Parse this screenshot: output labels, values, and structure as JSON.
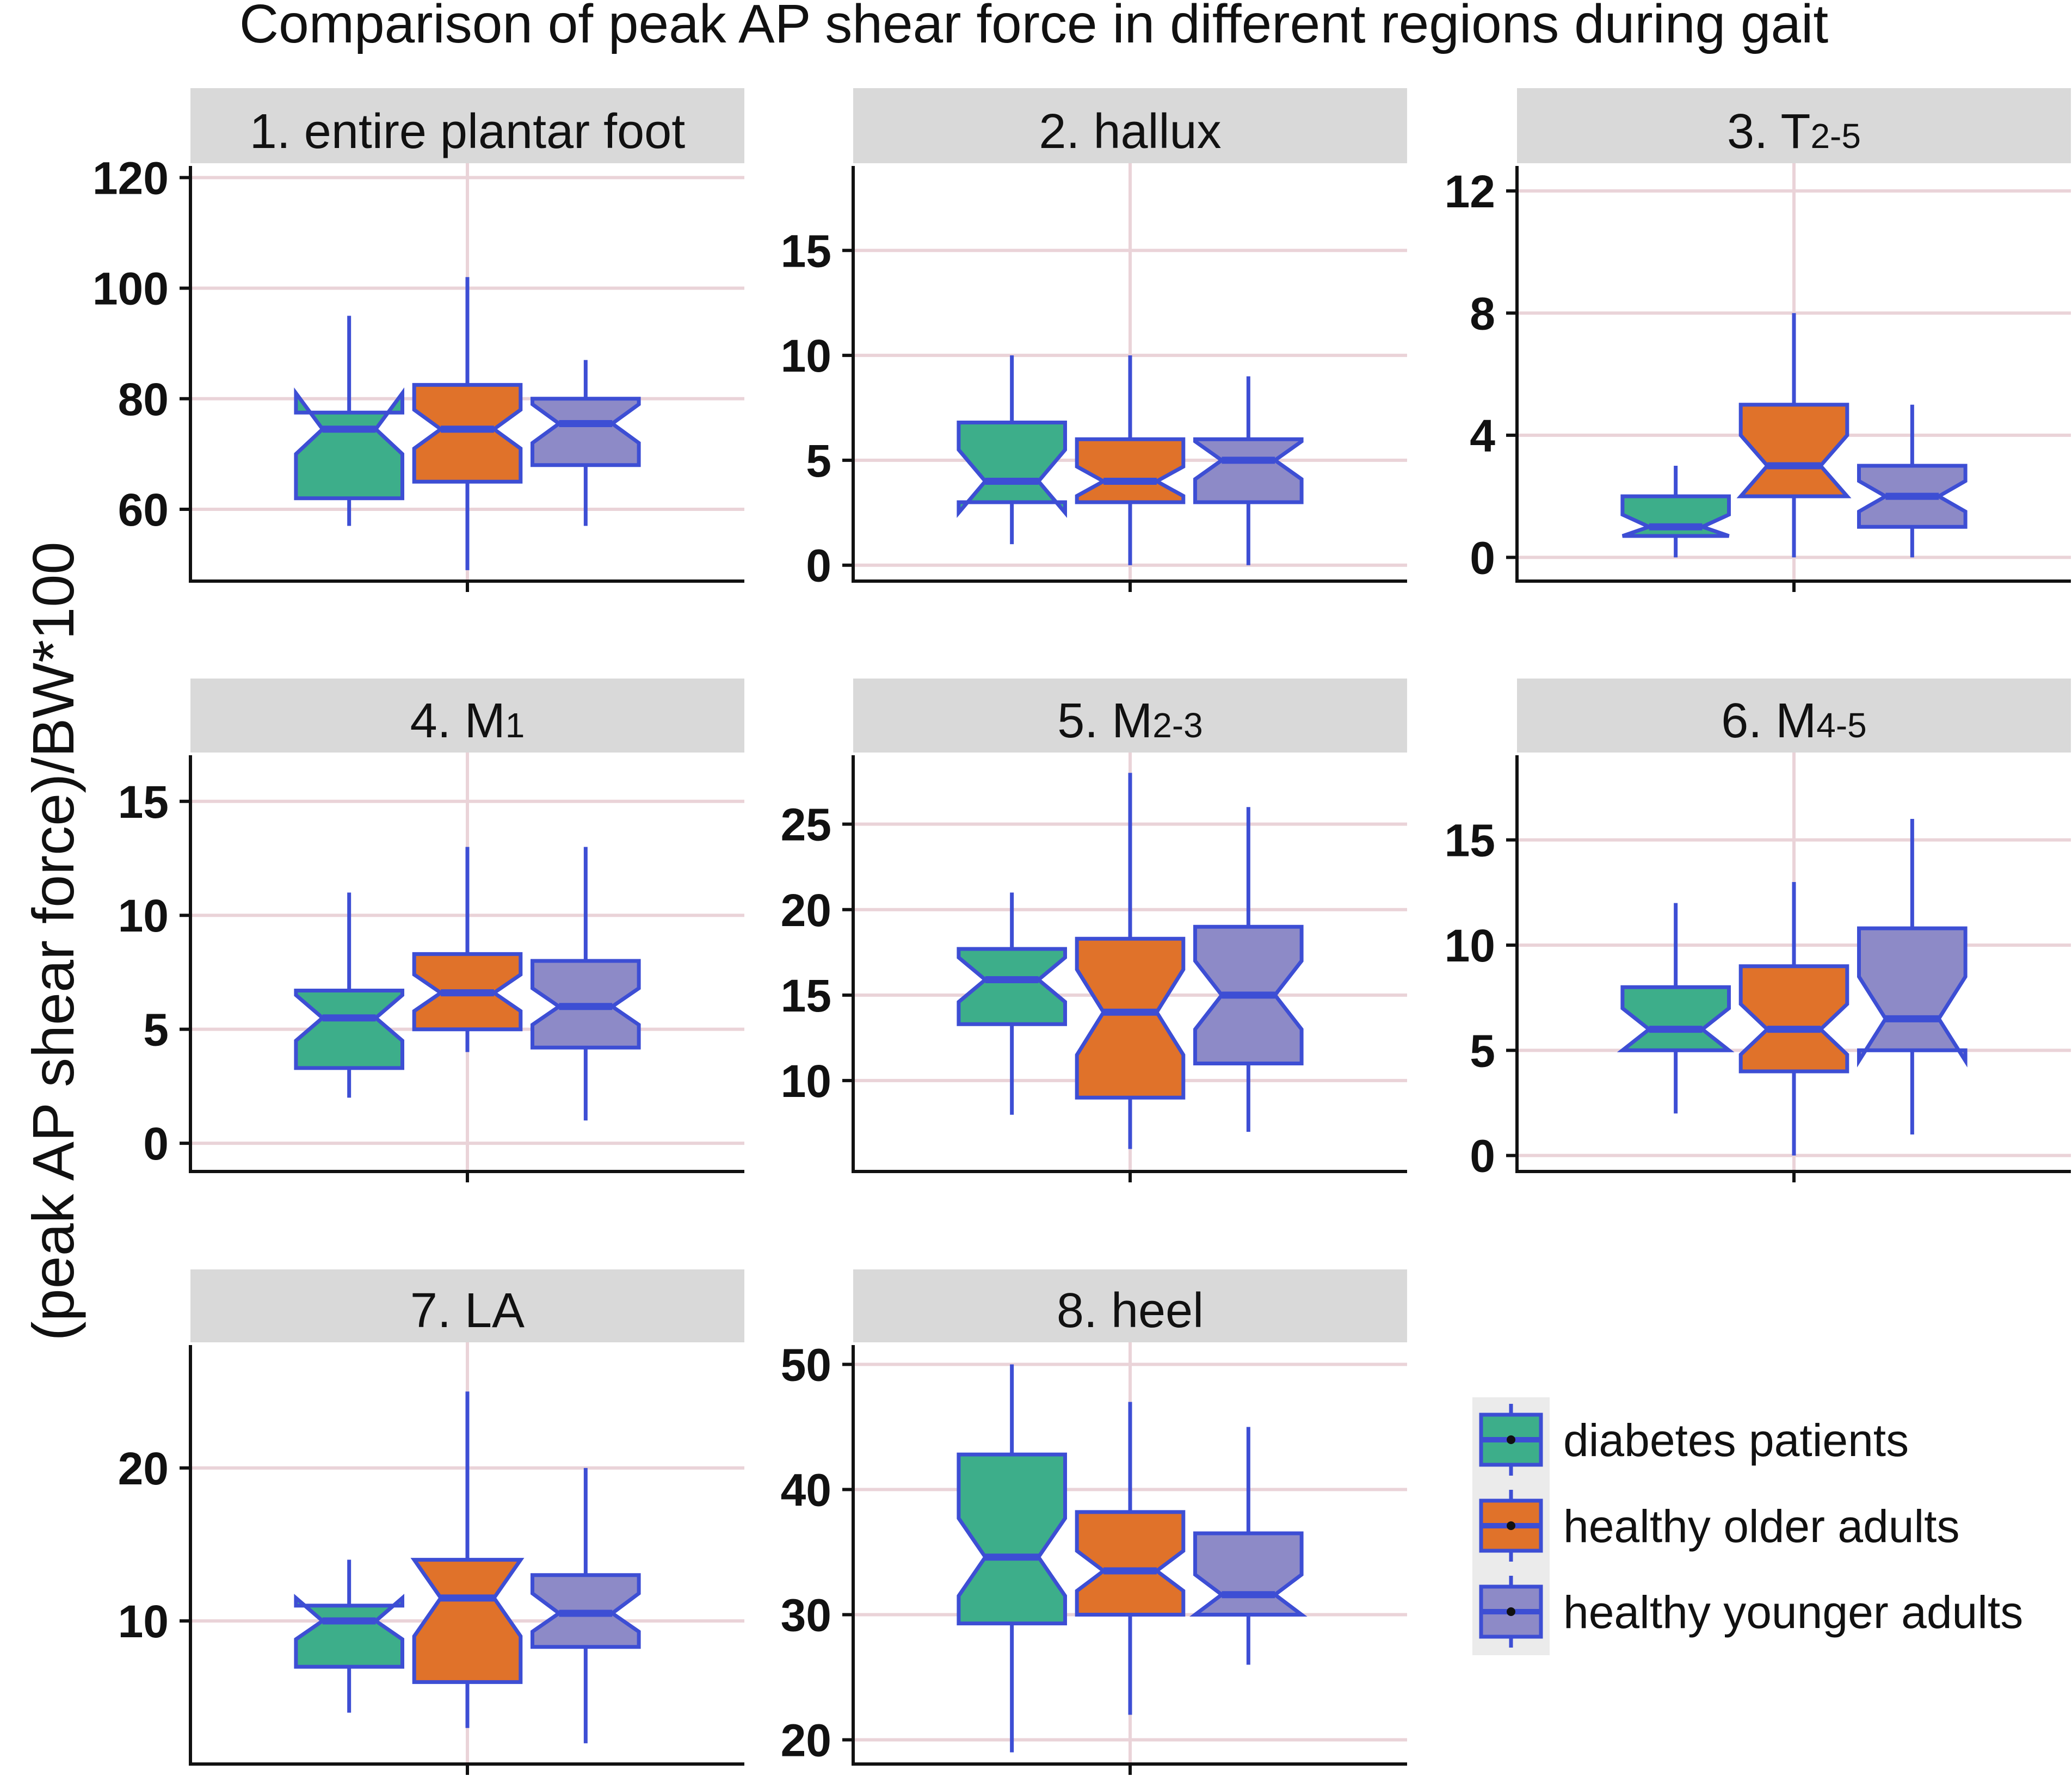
{
  "chart_data": {
    "type": "boxplot",
    "title": "Comparison of peak AP shear force in different regions during gait",
    "ylabel": "(peak AP shear force)/BW*100",
    "series_colors": {
      "fill": [
        "#3DAE8A",
        "#E0722A",
        "#8D8AC7"
      ],
      "stroke": "#3D4ED4",
      "strip": "#D9D9D9",
      "grid": "#EAD3D8",
      "legend_bg": "#EBEBEB"
    },
    "groups": [
      "diabetes patients",
      "healthy older adults",
      "healthy younger adults"
    ],
    "panels": [
      {
        "id": "1",
        "title_main": "1. entire plantar foot",
        "title_sub": "",
        "ylim": [
          48,
          122
        ],
        "ticks": [
          60,
          80,
          100,
          120
        ],
        "boxes": [
          {
            "group": "diabetes patients",
            "whisker_low": 57,
            "q1": 62,
            "median": 74.5,
            "q3": 77.5,
            "whisker_high": 95,
            "notch": [
              70,
              81
            ]
          },
          {
            "group": "healthy older adults",
            "whisker_low": 49,
            "q1": 65,
            "median": 74.5,
            "q3": 82.5,
            "whisker_high": 102,
            "notch": [
              71,
              78
            ]
          },
          {
            "group": "healthy younger adults",
            "whisker_low": 57,
            "q1": 68,
            "median": 75.5,
            "q3": 80,
            "whisker_high": 87,
            "notch": [
              72,
              79
            ]
          }
        ]
      },
      {
        "id": "2",
        "title_main": "2. hallux",
        "title_sub": "",
        "ylim": [
          -0.5,
          19
        ],
        "ticks": [
          0,
          5,
          10,
          15
        ],
        "boxes": [
          {
            "group": "diabetes patients",
            "whisker_low": 1,
            "q1": 3,
            "median": 4,
            "q3": 6.8,
            "whisker_high": 10,
            "notch": [
              2.5,
              5.5
            ]
          },
          {
            "group": "healthy older adults",
            "whisker_low": 0,
            "q1": 3,
            "median": 4,
            "q3": 6,
            "whisker_high": 10,
            "notch": [
              3.3,
              4.7
            ]
          },
          {
            "group": "healthy younger adults",
            "whisker_low": 0,
            "q1": 3,
            "median": 5,
            "q3": 6,
            "whisker_high": 9,
            "notch": [
              4.1,
              5.9
            ]
          }
        ]
      },
      {
        "id": "3",
        "title_main": "3. T",
        "title_sub": "2-5",
        "ylim": [
          -0.6,
          12.8
        ],
        "ticks": [
          0,
          4,
          8,
          12
        ],
        "boxes": [
          {
            "group": "diabetes patients",
            "whisker_low": 0,
            "q1": 0.7,
            "median": 1,
            "q3": 2,
            "whisker_high": 3,
            "notch": [
              0.7,
              1.4
            ]
          },
          {
            "group": "healthy older adults",
            "whisker_low": 0,
            "q1": 2,
            "median": 3,
            "q3": 5,
            "whisker_high": 8,
            "notch": [
              2,
              4
            ]
          },
          {
            "group": "healthy younger adults",
            "whisker_low": 0,
            "q1": 1,
            "median": 2,
            "q3": 3,
            "whisker_high": 5,
            "notch": [
              1.5,
              2.5
            ]
          }
        ]
      },
      {
        "id": "4",
        "title_main": "4. M",
        "title_sub": "1",
        "ylim": [
          -1,
          17
        ],
        "ticks": [
          0,
          5,
          10,
          15
        ],
        "boxes": [
          {
            "group": "diabetes patients",
            "whisker_low": 2,
            "q1": 3.3,
            "median": 5.5,
            "q3": 6.7,
            "whisker_high": 11,
            "notch": [
              4.5,
              6.5
            ]
          },
          {
            "group": "healthy older adults",
            "whisker_low": 4,
            "q1": 5,
            "median": 6.6,
            "q3": 8.3,
            "whisker_high": 13,
            "notch": [
              5.8,
              7.4
            ]
          },
          {
            "group": "healthy younger adults",
            "whisker_low": 1,
            "q1": 4.2,
            "median": 6,
            "q3": 8,
            "whisker_high": 13,
            "notch": [
              5.2,
              6.8
            ]
          }
        ]
      },
      {
        "id": "5",
        "title_main": "5. M",
        "title_sub": "2-3",
        "ylim": [
          5,
          29
        ],
        "ticks": [
          10,
          15,
          20,
          25
        ],
        "boxes": [
          {
            "group": "diabetes patients",
            "whisker_low": 8,
            "q1": 13.3,
            "median": 15.9,
            "q3": 17.7,
            "whisker_high": 21,
            "notch": [
              14.6,
              17.2
            ]
          },
          {
            "group": "healthy older adults",
            "whisker_low": 6,
            "q1": 9,
            "median": 14,
            "q3": 18.3,
            "whisker_high": 28,
            "notch": [
              11.5,
              16.5
            ]
          },
          {
            "group": "healthy younger adults",
            "whisker_low": 7,
            "q1": 11,
            "median": 15,
            "q3": 19,
            "whisker_high": 26,
            "notch": [
              13,
              17
            ]
          }
        ]
      },
      {
        "id": "6",
        "title_main": "6. M",
        "title_sub": "4-5",
        "ylim": [
          -0.5,
          19
        ],
        "ticks": [
          0,
          5,
          10,
          15
        ],
        "boxes": [
          {
            "group": "diabetes patients",
            "whisker_low": 2,
            "q1": 5,
            "median": 6,
            "q3": 8,
            "whisker_high": 12,
            "notch": [
              5,
              7
            ]
          },
          {
            "group": "healthy older adults",
            "whisker_low": 0,
            "q1": 4,
            "median": 6,
            "q3": 9,
            "whisker_high": 13,
            "notch": [
              4.8,
              7.2
            ]
          },
          {
            "group": "healthy younger adults",
            "whisker_low": 1,
            "q1": 5,
            "median": 6.5,
            "q3": 10.8,
            "whisker_high": 16,
            "notch": [
              4.5,
              8.5
            ]
          }
        ]
      },
      {
        "id": "7",
        "title_main": "7. LA",
        "title_sub": "",
        "ylim": [
          1,
          28
        ],
        "ticks": [
          10,
          20
        ],
        "boxes": [
          {
            "group": "diabetes patients",
            "whisker_low": 4,
            "q1": 7,
            "median": 10,
            "q3": 11,
            "whisker_high": 14,
            "notch": [
              8.8,
              11.5
            ]
          },
          {
            "group": "healthy older adults",
            "whisker_low": 3,
            "q1": 6,
            "median": 11.5,
            "q3": 14,
            "whisker_high": 25,
            "notch": [
              9,
              14
            ]
          },
          {
            "group": "healthy younger adults",
            "whisker_low": 2,
            "q1": 8.3,
            "median": 10.5,
            "q3": 13,
            "whisker_high": 20,
            "notch": [
              9.3,
              11.8
            ]
          }
        ]
      },
      {
        "id": "8",
        "title_main": "8. heel",
        "title_sub": "",
        "ylim": [
          18.5,
          51.5
        ],
        "ticks": [
          20,
          30,
          40,
          50
        ],
        "boxes": [
          {
            "group": "diabetes patients",
            "whisker_low": 19,
            "q1": 29.3,
            "median": 34.6,
            "q3": 42.8,
            "whisker_high": 50,
            "notch": [
              31.5,
              37.7
            ]
          },
          {
            "group": "healthy older adults",
            "whisker_low": 22,
            "q1": 30,
            "median": 33.5,
            "q3": 38.2,
            "whisker_high": 47,
            "notch": [
              31.9,
              35.1
            ]
          },
          {
            "group": "healthy younger adults",
            "whisker_low": 26,
            "q1": 30,
            "median": 31.6,
            "q3": 36.5,
            "whisker_high": 45,
            "notch": [
              30,
              33.2
            ]
          }
        ]
      }
    ]
  }
}
